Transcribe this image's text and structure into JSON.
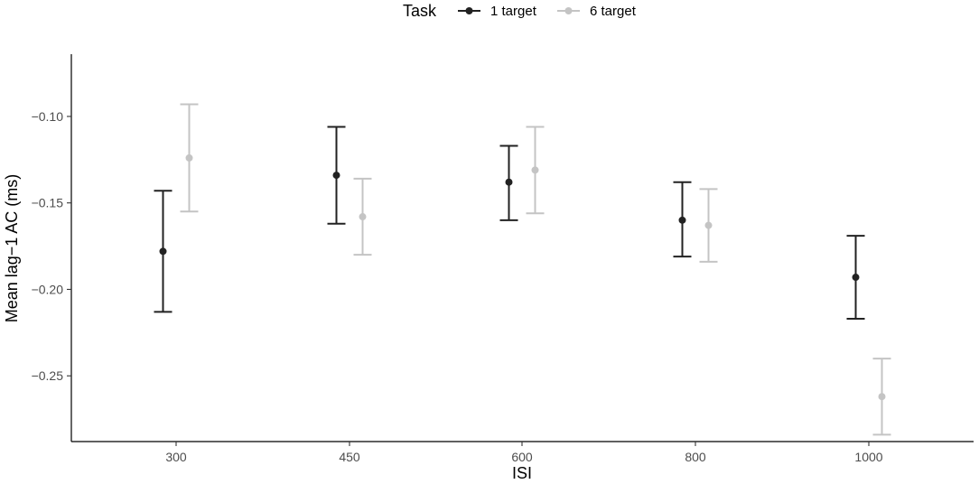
{
  "chart_data": {
    "type": "scatter",
    "xlabel": "ISI",
    "ylabel": "Mean lag−1 AC (ms)",
    "categories": [
      "300",
      "450",
      "600",
      "800",
      "1000"
    ],
    "ylim": [
      -0.288,
      -0.064
    ],
    "yticks": [
      -0.1,
      -0.15,
      -0.2,
      -0.25
    ],
    "ytick_labels": [
      "−0.10",
      "−0.15",
      "−0.20",
      "−0.25"
    ],
    "grid": false,
    "legend": {
      "title": "Task",
      "position": "top",
      "entries": [
        "1 target",
        "6 target"
      ]
    },
    "series": [
      {
        "name": "1 target",
        "color": "#222222",
        "values": [
          -0.178,
          -0.134,
          -0.138,
          -0.16,
          -0.193
        ],
        "lower": [
          -0.213,
          -0.162,
          -0.16,
          -0.181,
          -0.217
        ],
        "upper": [
          -0.143,
          -0.106,
          -0.117,
          -0.138,
          -0.169
        ]
      },
      {
        "name": "6 target",
        "color": "#c4c4c4",
        "values": [
          -0.124,
          -0.158,
          -0.131,
          -0.163,
          -0.262
        ],
        "lower": [
          -0.155,
          -0.18,
          -0.156,
          -0.184,
          -0.284
        ],
        "upper": [
          -0.093,
          -0.136,
          -0.106,
          -0.142,
          -0.24
        ]
      }
    ]
  }
}
